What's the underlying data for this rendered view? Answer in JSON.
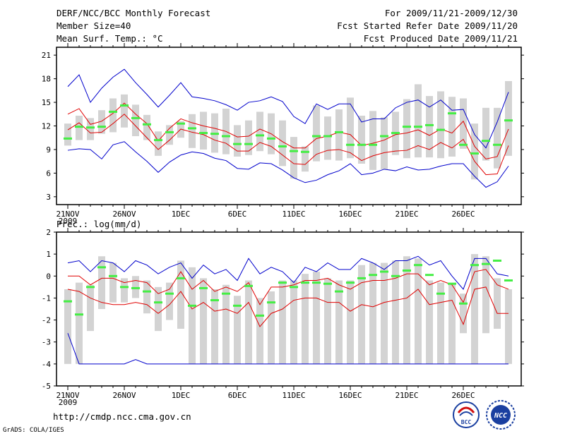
{
  "header": {
    "title": "DERF/NCC/BCC Monthly Forecast",
    "member_size": "Member Size=40",
    "variable": "Mean Surf. Temp.: °C",
    "period": "For 2009/11/21-2009/12/30",
    "refer_date": "Fcst Started Refer Date 2009/11/20",
    "produced_date": "Fcst Produced Date 2009/11/21"
  },
  "footer": {
    "url": "http://cmdp.ncc.cma.gov.cn",
    "grads": "GrADS: COLA/IGES"
  },
  "logos": {
    "bcc": "BCC",
    "ncc": "NCC"
  },
  "colors": {
    "bar": "#d3d3d3",
    "mean": "#000000",
    "red": "#e00000",
    "blue": "#0000cc",
    "green": "#44ee44"
  },
  "chart_data": [
    {
      "type": "line",
      "title": "Mean Surf. Temp.: °C",
      "xtick_labels": [
        "21NOV",
        "26NOV",
        "1DEC",
        "6DEC",
        "11DEC",
        "16DEC",
        "21DEC",
        "26DEC"
      ],
      "xtick_year": "2009",
      "ylim": [
        2,
        22
      ],
      "yticks": [
        3,
        6,
        9,
        12,
        15,
        18,
        21
      ],
      "days": 40,
      "series": [
        {
          "name": "upper bound",
          "color": "blue",
          "values": [
            17.0,
            18.5,
            15.0,
            16.8,
            18.2,
            19.2,
            17.5,
            16.0,
            14.4,
            15.9,
            17.5,
            15.7,
            15.5,
            15.2,
            14.7,
            14.0,
            15.0,
            15.2,
            15.7,
            15.1,
            13.2,
            12.3,
            14.8,
            14.1,
            14.8,
            14.8,
            12.5,
            12.9,
            12.9,
            14.3,
            15.0,
            15.3,
            14.4,
            15.3,
            14.0,
            14.1,
            10.9,
            9.2,
            12.5,
            16.3
          ]
        },
        {
          "name": "upper red",
          "color": "red",
          "values": [
            13.5,
            14.2,
            12.2,
            12.6,
            13.6,
            14.9,
            13.5,
            12.3,
            10.1,
            11.7,
            12.9,
            12.4,
            12.0,
            11.7,
            11.3,
            10.6,
            10.7,
            11.6,
            11.0,
            10.0,
            9.2,
            9.2,
            10.4,
            10.7,
            11.2,
            10.9,
            9.5,
            9.8,
            10.2,
            10.9,
            11.1,
            11.5,
            10.8,
            11.6,
            11.1,
            12.6,
            9.4,
            7.8,
            8.1,
            11.6
          ]
        },
        {
          "name": "ensemble mean",
          "color": "black",
          "values": [
            12.6,
            13.3,
            11.7,
            12.0,
            13.2,
            14.4,
            13.0,
            11.7,
            9.5,
            11.0,
            12.5,
            11.9,
            11.6,
            11.2,
            11.0,
            9.9,
            10.0,
            11.0,
            10.4,
            9.3,
            8.6,
            8.5,
            9.6,
            9.9,
            10.4,
            10.3,
            8.8,
            9.2,
            9.5,
            10.1,
            10.3,
            10.8,
            10.4,
            10.9,
            10.3,
            11.7,
            8.6,
            7.0,
            7.3,
            10.8
          ]
        },
        {
          "name": "lower red",
          "color": "red",
          "values": [
            11.5,
            12.4,
            11.1,
            11.2,
            12.3,
            13.5,
            12.0,
            10.5,
            9.0,
            10.2,
            11.6,
            11.2,
            10.9,
            10.2,
            9.8,
            8.8,
            8.8,
            9.9,
            9.4,
            8.3,
            7.2,
            7.1,
            8.4,
            8.9,
            9.0,
            8.6,
            7.6,
            8.2,
            8.6,
            8.8,
            8.9,
            9.5,
            9.0,
            9.9,
            9.2,
            10.3,
            7.5,
            5.8,
            5.9,
            9.5
          ]
        },
        {
          "name": "lower bound",
          "color": "blue",
          "values": [
            8.9,
            9.1,
            9.0,
            7.8,
            9.6,
            10.0,
            8.7,
            7.5,
            6.1,
            7.4,
            8.3,
            8.7,
            8.5,
            7.9,
            7.6,
            6.6,
            6.5,
            7.3,
            7.2,
            6.4,
            5.4,
            4.8,
            5.1,
            5.8,
            6.3,
            7.2,
            5.8,
            6.0,
            6.5,
            6.3,
            6.8,
            6.4,
            6.5,
            6.9,
            7.2,
            7.2,
            5.6,
            4.2,
            4.9,
            6.9
          ]
        },
        {
          "name": "observed",
          "color": "green",
          "values": [
            10.4,
            11.9,
            11.8,
            11.9,
            13.8,
            14.6,
            13.0,
            12.2,
            10.2,
            11.2,
            12.3,
            11.7,
            11.1,
            11.0,
            10.7,
            9.7,
            9.7,
            10.8,
            10.4,
            9.4,
            8.8,
            8.7,
            10.7,
            10.7,
            11.2,
            9.6,
            9.6,
            9.6,
            10.7,
            11.1,
            11.9,
            11.9,
            12.1,
            11.5,
            13.6,
            9.6,
            8.5,
            10.1,
            9.6,
            12.7
          ]
        }
      ],
      "box_ranges": [
        [
          9.5,
          12.3
        ],
        [
          10.2,
          13.3
        ],
        [
          10.2,
          13.0
        ],
        [
          11.0,
          14.0
        ],
        [
          11.2,
          15.5
        ],
        [
          11.8,
          16.0
        ],
        [
          10.7,
          14.7
        ],
        [
          10.2,
          13.4
        ],
        [
          8.2,
          11.3
        ],
        [
          9.6,
          12.1
        ],
        [
          10.5,
          12.6
        ],
        [
          9.2,
          13.5
        ],
        [
          9.0,
          13.8
        ],
        [
          8.6,
          13.6
        ],
        [
          8.4,
          14.2
        ],
        [
          8.1,
          12.1
        ],
        [
          8.3,
          12.7
        ],
        [
          8.8,
          13.8
        ],
        [
          8.4,
          13.6
        ],
        [
          6.9,
          12.7
        ],
        [
          5.3,
          10.6
        ],
        [
          6.2,
          9.4
        ],
        [
          7.5,
          14.6
        ],
        [
          7.7,
          13.2
        ],
        [
          7.6,
          14.1
        ],
        [
          7.9,
          15.6
        ],
        [
          7.2,
          13.3
        ],
        [
          6.4,
          13.9
        ],
        [
          6.5,
          13.1
        ],
        [
          8.3,
          13.8
        ],
        [
          7.9,
          15.4
        ],
        [
          8.0,
          17.3
        ],
        [
          8.0,
          15.8
        ],
        [
          7.9,
          16.4
        ],
        [
          8.1,
          15.7
        ],
        [
          9.1,
          15.5
        ],
        [
          5.2,
          12.3
        ],
        [
          7.6,
          14.3
        ],
        [
          6.6,
          14.3
        ],
        [
          8.2,
          17.7
        ]
      ]
    },
    {
      "type": "line",
      "title": "Prec.: log(mm/d)",
      "xtick_labels": [
        "21NOV",
        "26NOV",
        "1DEC",
        "6DEC",
        "11DEC",
        "16DEC",
        "21DEC",
        "26DEC"
      ],
      "xtick_year": "2009",
      "ylim": [
        -5,
        2
      ],
      "yticks": [
        -5,
        -4,
        -3,
        -2,
        -1,
        0,
        1,
        2
      ],
      "days": 40,
      "series": [
        {
          "name": "upper bound",
          "color": "blue",
          "values": [
            0.6,
            0.7,
            0.2,
            0.7,
            0.6,
            0.2,
            0.7,
            0.5,
            0.1,
            0.4,
            0.6,
            -0.1,
            0.5,
            0.1,
            0.3,
            -0.2,
            0.8,
            0.1,
            0.4,
            0.2,
            -0.3,
            0.4,
            0.2,
            0.6,
            0.3,
            0.3,
            0.8,
            0.6,
            0.3,
            0.7,
            0.7,
            0.9,
            0.5,
            0.7,
            0.0,
            -0.6,
            0.8,
            0.8,
            0.1,
            0.0
          ]
        },
        {
          "name": "upper red",
          "color": "red",
          "values": [
            0.0,
            0.0,
            -0.4,
            -0.1,
            -0.1,
            -0.3,
            -0.2,
            -0.3,
            -0.8,
            -0.6,
            0.2,
            -0.6,
            -0.2,
            -0.7,
            -0.5,
            -0.7,
            -0.3,
            -1.3,
            -0.5,
            -0.5,
            -0.4,
            -0.2,
            -0.2,
            -0.1,
            -0.4,
            -0.6,
            -0.3,
            -0.2,
            -0.2,
            -0.1,
            0.1,
            0.1,
            -0.4,
            -0.2,
            -0.4,
            -1.2,
            0.2,
            0.3,
            -0.4,
            -0.6
          ]
        },
        {
          "name": "ensemble mean",
          "color": "black",
          "values": [
            -0.1,
            0.0,
            -0.5,
            -0.1,
            -0.2,
            -0.4,
            -0.3,
            -0.4,
            -0.9,
            -0.7,
            0.1,
            -0.7,
            -0.3,
            -0.8,
            -0.6,
            -0.8,
            -0.4,
            -1.4,
            -0.6,
            -0.6,
            -0.5,
            -0.3,
            -0.2,
            -0.2,
            -0.5,
            -0.7,
            -0.4,
            -0.3,
            -0.3,
            -0.2,
            0.0,
            0.0,
            -0.5,
            -0.3,
            -0.5,
            -1.3,
            0.1,
            0.2,
            -0.5,
            -0.7
          ]
        },
        {
          "name": "lower red",
          "color": "red",
          "values": [
            -0.6,
            -0.7,
            -1.0,
            -1.2,
            -1.3,
            -1.3,
            -1.2,
            -1.3,
            -1.7,
            -1.3,
            -0.7,
            -1.5,
            -1.2,
            -1.6,
            -1.5,
            -1.7,
            -1.2,
            -2.3,
            -1.7,
            -1.5,
            -1.1,
            -1.0,
            -1.0,
            -1.2,
            -1.2,
            -1.6,
            -1.3,
            -1.4,
            -1.2,
            -1.1,
            -1.0,
            -0.6,
            -1.3,
            -1.2,
            -1.1,
            -2.2,
            -0.6,
            -0.5,
            -1.7,
            -1.7
          ]
        },
        {
          "name": "lower bound",
          "color": "blue",
          "values": [
            -2.6,
            -4.0,
            -4.0,
            -4.0,
            -4.0,
            -4.0,
            -3.8,
            -4.0,
            -4.0,
            -4.0,
            -4.0,
            -4.0,
            -4.0,
            -4.0,
            -4.0,
            -4.0,
            -4.0,
            -4.0,
            -4.0,
            -4.0,
            -4.0,
            -4.0,
            -4.0,
            -4.0,
            -4.0,
            -4.0,
            -4.0,
            -4.0,
            -4.0,
            -4.0,
            -4.0,
            -4.0,
            -4.0,
            -4.0,
            -4.0,
            -4.0,
            -4.0,
            -4.0,
            -4.0,
            -4.0
          ]
        },
        {
          "name": "observed",
          "color": "green",
          "values": [
            -1.15,
            -1.75,
            -0.5,
            0.4,
            0.0,
            -0.5,
            -0.55,
            -0.7,
            -1.2,
            -0.8,
            -0.1,
            -1.35,
            -0.55,
            -1.1,
            -0.8,
            -1.35,
            -0.45,
            -1.8,
            -1.2,
            -0.3,
            -0.5,
            -0.3,
            -0.3,
            -0.35,
            -0.7,
            -0.3,
            -0.1,
            0.05,
            0.2,
            0.0,
            0.25,
            0.5,
            0.05,
            -0.8,
            -0.35,
            -1.25,
            0.5,
            0.55,
            0.7,
            -0.2
          ]
        }
      ],
      "box_ranges": [
        [
          -4.0,
          -0.6
        ],
        [
          -4.0,
          -0.3
        ],
        [
          -2.5,
          -0.4
        ],
        [
          -1.5,
          0.9
        ],
        [
          -1.2,
          0.6
        ],
        [
          -1.2,
          -0.1
        ],
        [
          -1.0,
          0.0
        ],
        [
          -1.7,
          -0.2
        ],
        [
          -2.5,
          -0.5
        ],
        [
          -2.0,
          -0.3
        ],
        [
          -2.4,
          0.7
        ],
        [
          -4.0,
          0.4
        ],
        [
          -4.0,
          -0.1
        ],
        [
          -4.0,
          -0.6
        ],
        [
          -4.0,
          -0.4
        ],
        [
          -4.0,
          -0.9
        ],
        [
          -4.0,
          -0.2
        ],
        [
          -4.0,
          -1.0
        ],
        [
          -4.0,
          -0.7
        ],
        [
          -4.0,
          -0.2
        ],
        [
          -4.0,
          -0.2
        ],
        [
          -4.0,
          0.1
        ],
        [
          -4.0,
          0.2
        ],
        [
          -4.0,
          -0.1
        ],
        [
          -4.0,
          -0.2
        ],
        [
          -4.0,
          -0.2
        ],
        [
          -4.0,
          0.5
        ],
        [
          -4.0,
          0.6
        ],
        [
          -4.0,
          0.6
        ],
        [
          -4.0,
          0.7
        ],
        [
          -4.0,
          0.9
        ],
        [
          -4.0,
          0.8
        ],
        [
          -4.0,
          -0.2
        ],
        [
          -4.0,
          -0.3
        ],
        [
          -4.0,
          -0.3
        ],
        [
          -2.6,
          -0.8
        ],
        [
          -4.0,
          1.0
        ],
        [
          -2.6,
          0.9
        ],
        [
          -2.4,
          -0.1
        ],
        [
          -4.0,
          -0.6
        ]
      ]
    }
  ]
}
